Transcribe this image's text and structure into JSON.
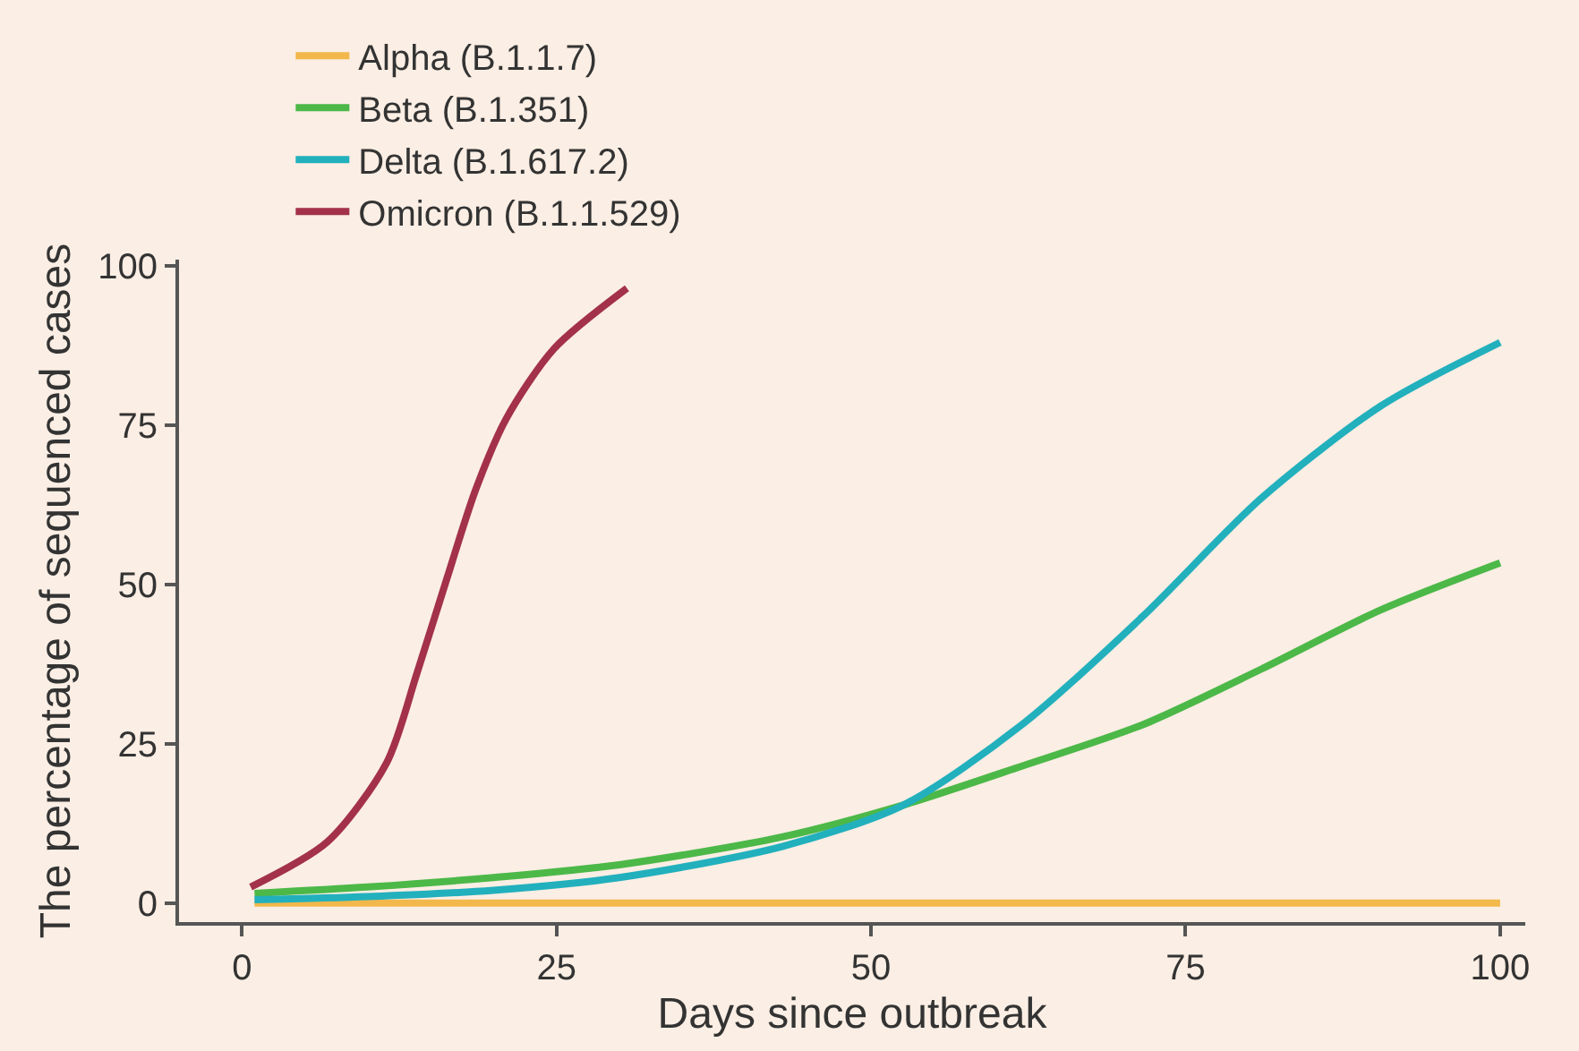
{
  "chart_data": {
    "type": "line",
    "xlabel": "Days since outbreak",
    "ylabel": "The percentage of sequenced cases",
    "xlim": [
      -5,
      102
    ],
    "xticks": [
      0,
      25,
      50,
      75,
      100
    ],
    "ylim": [
      -3,
      101
    ],
    "yticks": [
      0,
      25,
      50,
      75,
      100
    ],
    "grid": false,
    "legend": "top",
    "marker": "none",
    "line_style": "solid",
    "series": [
      {
        "name": "Alpha (B.1.1.7)",
        "color": "#f2b84b",
        "x": [
          1,
          25,
          50,
          75,
          100
        ],
        "values": [
          0,
          0,
          0,
          0,
          0
        ]
      },
      {
        "name": "Beta (B.1.351)",
        "color": "#4cb848",
        "x": [
          1,
          10,
          20,
          30,
          43,
          52.6,
          62,
          71.6,
          81,
          90.5,
          100
        ],
        "values": [
          1.5,
          2.5,
          4,
          6,
          10.4,
          15.4,
          21.5,
          28,
          36.7,
          46,
          53.4
        ]
      },
      {
        "name": "Delta (B.1.617.2)",
        "color": "#22b0bd",
        "x": [
          1,
          10,
          20,
          30,
          43,
          52.6,
          62,
          71.6,
          81,
          90.5,
          100
        ],
        "values": [
          0.5,
          1,
          2,
          4,
          8.9,
          15.4,
          28,
          45,
          63.5,
          78,
          88
        ]
      },
      {
        "name": "Omicron (B.1.1.529)",
        "color": "#a3314a",
        "x": [
          0.7,
          6.8,
          11.5,
          13.9,
          16.3,
          18.6,
          21,
          24.8,
          30.6
        ],
        "values": [
          2.5,
          9.6,
          22,
          36,
          51,
          65,
          76,
          87,
          96.5
        ]
      }
    ]
  }
}
